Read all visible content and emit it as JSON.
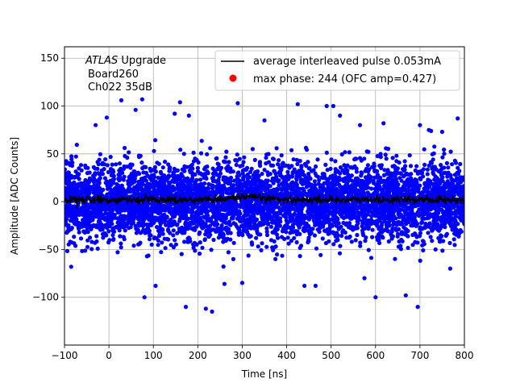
{
  "chart_data": {
    "type": "scatter",
    "xlabel": "Time [ns]",
    "ylabel": "Amplitude [ADC Counts]",
    "xlim": [
      -100,
      800
    ],
    "ylim": [
      -150,
      162
    ],
    "xticks": [
      -100,
      0,
      100,
      200,
      300,
      400,
      500,
      600,
      700,
      800
    ],
    "xtick_labels": [
      "−100",
      "0",
      "100",
      "200",
      "300",
      "400",
      "500",
      "600",
      "700",
      "800"
    ],
    "yticks": [
      -100,
      -50,
      0,
      50,
      100,
      150
    ],
    "ytick_labels": [
      "−100",
      "−50",
      "0",
      "50",
      "100",
      "150"
    ],
    "grid": true,
    "legend_position": "top-right",
    "annotation": {
      "line1_italic": "ATLAS",
      "line1_rest": " Upgrade",
      "line2": "Board260",
      "line3": "Ch022 35dB"
    },
    "series": [
      {
        "name": "average interleaved pulse 0.053mA",
        "kind": "line",
        "color": "#000000",
        "x_range": [
          -100,
          800
        ],
        "mean": 2,
        "noise_sd": 2
      },
      {
        "name": "max phase: 244 (OFC amp=0.427)",
        "kind": "scatter",
        "color": "#ff0000",
        "marker": "legend-only"
      },
      {
        "name": "samples",
        "kind": "scatter",
        "color": "#0000ff",
        "x_range": [
          -100,
          800
        ],
        "mean": 0,
        "noise_sd": 20,
        "y_extent": [
          -115,
          107
        ],
        "outliers": [
          [
            -85,
            -68
          ],
          [
            -30,
            80
          ],
          [
            -5,
            88
          ],
          [
            28,
            106
          ],
          [
            60,
            96
          ],
          [
            75,
            107
          ],
          [
            80,
            -100
          ],
          [
            105,
            -88
          ],
          [
            148,
            92
          ],
          [
            160,
            104
          ],
          [
            173,
            -110
          ],
          [
            180,
            90
          ],
          [
            218,
            -112
          ],
          [
            232,
            -115
          ],
          [
            260,
            -86
          ],
          [
            290,
            103
          ],
          [
            300,
            -85
          ],
          [
            350,
            85
          ],
          [
            425,
            102
          ],
          [
            440,
            -88
          ],
          [
            465,
            -88
          ],
          [
            490,
            100
          ],
          [
            505,
            100
          ],
          [
            565,
            80
          ],
          [
            575,
            -80
          ],
          [
            600,
            -100
          ],
          [
            668,
            -98
          ],
          [
            695,
            -110
          ],
          [
            720,
            75
          ],
          [
            725,
            74
          ],
          [
            750,
            73
          ],
          [
            768,
            -70
          ],
          [
            785,
            87
          ],
          [
            700,
            80
          ],
          [
            520,
            90
          ],
          [
            618,
            82
          ]
        ]
      }
    ]
  }
}
